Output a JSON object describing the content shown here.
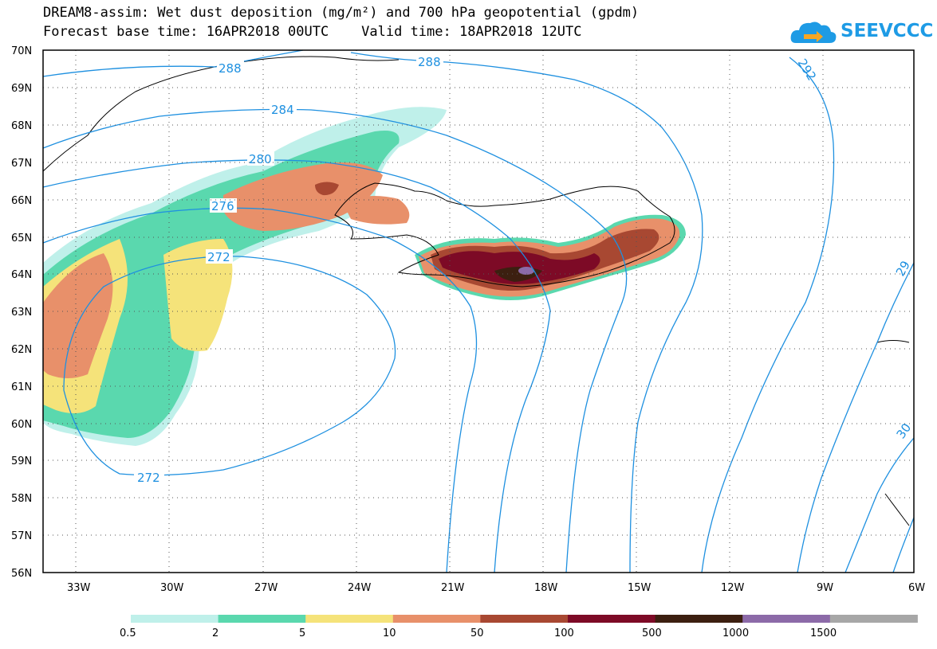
{
  "header": {
    "title_line1": "DREAM8-assim: Wet dust deposition (mg/m²) and 700 hPa geopotential (gpdm)",
    "title_line2": "Forecast base time: 16APR2018 00UTC    Valid time: 18APR2018 12UTC"
  },
  "logo": {
    "text": "SEEVCCC",
    "icon": "cloud-arrow-icon",
    "color": "#1e9be5"
  },
  "map": {
    "lat_labels": [
      "70N",
      "69N",
      "68N",
      "67N",
      "66N",
      "65N",
      "64N",
      "63N",
      "62N",
      "61N",
      "60N",
      "59N",
      "58N",
      "57N",
      "56N"
    ],
    "lon_labels": [
      "33W",
      "30W",
      "27W",
      "24W",
      "21W",
      "18W",
      "15W",
      "12W",
      "9W",
      "6W"
    ],
    "contour_color": "#1e90e0",
    "contour_labels": [
      "288",
      "288",
      "292",
      "284",
      "280",
      "276",
      "272",
      "272",
      "29",
      "30"
    ]
  },
  "colorbar": {
    "colors": [
      "#bff0ea",
      "#5ad8ae",
      "#f5e37a",
      "#e8906a",
      "#a84832",
      "#7d0a26",
      "#3c1f10",
      "#8c6aa8",
      "#a7a7a7"
    ],
    "tick_labels": [
      "0.5",
      "2",
      "5",
      "10",
      "50",
      "100",
      "500",
      "1000",
      "1500"
    ]
  }
}
